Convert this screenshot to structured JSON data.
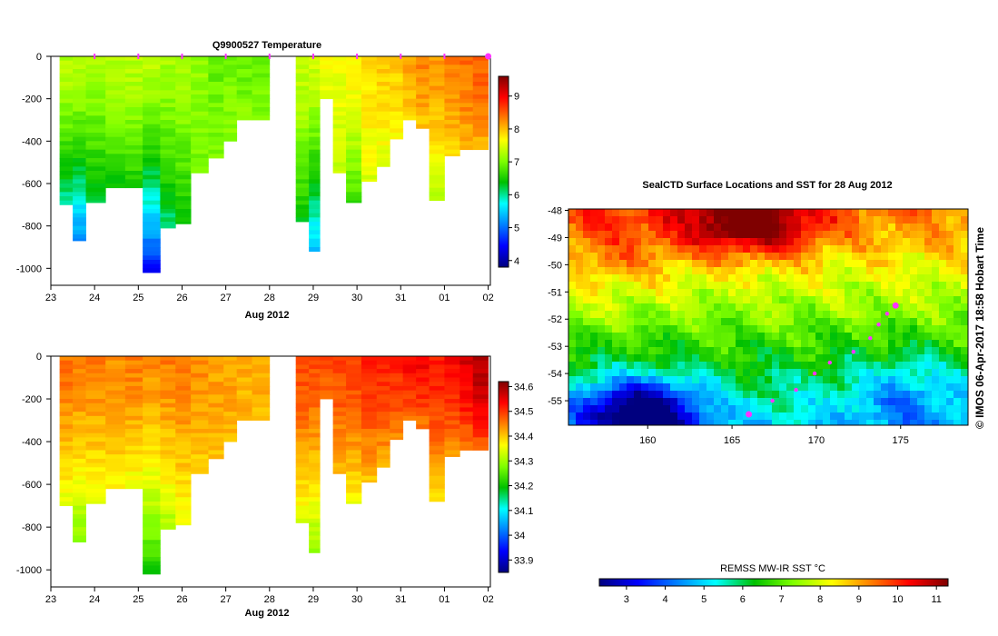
{
  "colors": {
    "jet": [
      "#00007f",
      "#0000ff",
      "#0080ff",
      "#00ffff",
      "#00c000",
      "#80ff00",
      "#ffff00",
      "#ff8000",
      "#ff0000",
      "#7f0000"
    ],
    "marker": "#ff33ff",
    "background": "#ffffff"
  },
  "chart_data": [
    {
      "type": "heatmap",
      "title": "Q9900527  Temperature",
      "xlabel": "Aug 2012",
      "x_ticks": [
        "23",
        "24",
        "25",
        "26",
        "27",
        "28",
        "29",
        "30",
        "31",
        "01",
        "02"
      ],
      "y_ticks": [
        "0",
        "-200",
        "-400",
        "-600",
        "-800",
        "-1000"
      ],
      "xlim": [
        23,
        33.05
      ],
      "ylim": [
        -1080,
        0
      ],
      "colorbar": {
        "min": 3.8,
        "max": 9.6,
        "ticks": [
          "4",
          "5",
          "6",
          "7",
          "8",
          "9"
        ]
      },
      "profile_markers": [
        24,
        25,
        26,
        27,
        28,
        29,
        30,
        31,
        32,
        33
      ],
      "profiles": [
        {
          "t": 23.4,
          "depth": 700,
          "surface": 7.3,
          "bottom": 5.9
        },
        {
          "t": 23.6,
          "depth": 870,
          "surface": 7.3,
          "bottom": 5.0
        },
        {
          "t": 24.0,
          "depth": 690,
          "surface": 7.2,
          "bottom": 6.1
        },
        {
          "t": 24.5,
          "depth": 620,
          "surface": 7.3,
          "bottom": 6.3
        },
        {
          "t": 24.9,
          "depth": 620,
          "surface": 7.3,
          "bottom": 6.4
        },
        {
          "t": 25.3,
          "depth": 1020,
          "surface": 7.3,
          "bottom": 4.4
        },
        {
          "t": 25.7,
          "depth": 810,
          "surface": 7.2,
          "bottom": 6.0
        },
        {
          "t": 26.0,
          "depth": 790,
          "surface": 7.2,
          "bottom": 6.3
        },
        {
          "t": 26.4,
          "depth": 550,
          "surface": 7.1,
          "bottom": 6.9
        },
        {
          "t": 26.8,
          "depth": 480,
          "surface": 6.9,
          "bottom": 7.0
        },
        {
          "t": 27.1,
          "depth": 400,
          "surface": 7.0,
          "bottom": 7.1
        },
        {
          "t": 27.4,
          "depth": 300,
          "surface": 6.9,
          "bottom": 7.1
        },
        {
          "t": 27.8,
          "depth": 300,
          "surface": 6.9,
          "bottom": 7.1
        },
        {
          "t": 28.8,
          "depth": 780,
          "surface": 7.4,
          "bottom": 6.3
        },
        {
          "t": 29.0,
          "depth": 920,
          "surface": 7.4,
          "bottom": 5.3
        },
        {
          "t": 29.3,
          "depth": 200,
          "surface": 7.6,
          "bottom": 7.5
        },
        {
          "t": 29.6,
          "depth": 550,
          "surface": 7.6,
          "bottom": 7.3
        },
        {
          "t": 29.9,
          "depth": 690,
          "surface": 7.7,
          "bottom": 6.6
        },
        {
          "t": 30.3,
          "depth": 590,
          "surface": 7.8,
          "bottom": 7.5
        },
        {
          "t": 30.6,
          "depth": 520,
          "surface": 7.9,
          "bottom": 7.5
        },
        {
          "t": 30.9,
          "depth": 390,
          "surface": 7.9,
          "bottom": 7.7
        },
        {
          "t": 31.2,
          "depth": 300,
          "surface": 8.1,
          "bottom": 7.9
        },
        {
          "t": 31.5,
          "depth": 340,
          "surface": 8.3,
          "bottom": 7.9
        },
        {
          "t": 31.8,
          "depth": 680,
          "surface": 8.2,
          "bottom": 7.2
        },
        {
          "t": 32.2,
          "depth": 470,
          "surface": 8.3,
          "bottom": 7.8
        },
        {
          "t": 32.5,
          "depth": 440,
          "surface": 8.4,
          "bottom": 8.0
        },
        {
          "t": 32.8,
          "depth": 440,
          "surface": 8.5,
          "bottom": 8.0
        }
      ]
    },
    {
      "type": "heatmap",
      "title": "",
      "xlabel": "Aug 2012",
      "x_ticks": [
        "23",
        "24",
        "25",
        "26",
        "27",
        "28",
        "29",
        "30",
        "31",
        "01",
        "02"
      ],
      "y_ticks": [
        "0",
        "-200",
        "-400",
        "-600",
        "-800",
        "-1000"
      ],
      "xlim": [
        23,
        33.05
      ],
      "ylim": [
        -1080,
        0
      ],
      "colorbar": {
        "min": 33.85,
        "max": 34.62,
        "ticks": [
          "33.9",
          "34",
          "34.1",
          "34.2",
          "34.3",
          "34.4",
          "34.5",
          "34.6"
        ]
      },
      "profiles": [
        {
          "t": 23.4,
          "depth": 700,
          "surface": 34.46,
          "bottom": 34.34
        },
        {
          "t": 23.6,
          "depth": 870,
          "surface": 34.45,
          "bottom": 34.27
        },
        {
          "t": 24.0,
          "depth": 690,
          "surface": 34.45,
          "bottom": 34.33
        },
        {
          "t": 24.5,
          "depth": 620,
          "surface": 34.44,
          "bottom": 34.36
        },
        {
          "t": 24.9,
          "depth": 620,
          "surface": 34.45,
          "bottom": 34.34
        },
        {
          "t": 25.3,
          "depth": 1020,
          "surface": 34.44,
          "bottom": 34.2
        },
        {
          "t": 25.7,
          "depth": 810,
          "surface": 34.45,
          "bottom": 34.3
        },
        {
          "t": 26.0,
          "depth": 790,
          "surface": 34.45,
          "bottom": 34.34
        },
        {
          "t": 26.4,
          "depth": 550,
          "surface": 34.44,
          "bottom": 34.38
        },
        {
          "t": 26.8,
          "depth": 480,
          "surface": 34.43,
          "bottom": 34.4
        },
        {
          "t": 27.1,
          "depth": 400,
          "surface": 34.43,
          "bottom": 34.41
        },
        {
          "t": 27.4,
          "depth": 300,
          "surface": 34.42,
          "bottom": 34.41
        },
        {
          "t": 27.8,
          "depth": 300,
          "surface": 34.42,
          "bottom": 34.41
        },
        {
          "t": 28.8,
          "depth": 780,
          "surface": 34.49,
          "bottom": 34.33
        },
        {
          "t": 29.0,
          "depth": 920,
          "surface": 34.48,
          "bottom": 34.28
        },
        {
          "t": 29.3,
          "depth": 200,
          "surface": 34.48,
          "bottom": 34.46
        },
        {
          "t": 29.6,
          "depth": 550,
          "surface": 34.49,
          "bottom": 34.4
        },
        {
          "t": 29.9,
          "depth": 690,
          "surface": 34.49,
          "bottom": 34.35
        },
        {
          "t": 30.3,
          "depth": 590,
          "surface": 34.51,
          "bottom": 34.4
        },
        {
          "t": 30.6,
          "depth": 520,
          "surface": 34.51,
          "bottom": 34.41
        },
        {
          "t": 30.9,
          "depth": 390,
          "surface": 34.51,
          "bottom": 34.44
        },
        {
          "t": 31.2,
          "depth": 300,
          "surface": 34.53,
          "bottom": 34.46
        },
        {
          "t": 31.5,
          "depth": 340,
          "surface": 34.54,
          "bottom": 34.44
        },
        {
          "t": 31.8,
          "depth": 680,
          "surface": 34.52,
          "bottom": 34.37
        },
        {
          "t": 32.2,
          "depth": 470,
          "surface": 34.53,
          "bottom": 34.42
        },
        {
          "t": 32.5,
          "depth": 440,
          "surface": 34.56,
          "bottom": 34.44
        },
        {
          "t": 32.8,
          "depth": 440,
          "surface": 34.59,
          "bottom": 34.46
        }
      ]
    },
    {
      "type": "heatmap",
      "title": "SealCTD Surface Locations and SST for 28 Aug 2012",
      "x_ticks": [
        160,
        165,
        170,
        175
      ],
      "y_ticks": [
        -48,
        -49,
        -50,
        -51,
        -52,
        -53,
        -54,
        -55
      ],
      "xlim": [
        155.3,
        179
      ],
      "ylim": [
        -55.9,
        -47.95
      ],
      "colorbar": {
        "label": "REMSS MW-IR SST °C",
        "min": 2.3,
        "max": 11.3,
        "ticks": [
          3,
          4,
          5,
          6,
          7,
          8,
          9,
          10,
          11
        ]
      },
      "track": [
        {
          "lon": 174.7,
          "lat": -51.5
        },
        {
          "lon": 174.2,
          "lat": -51.8
        },
        {
          "lon": 173.7,
          "lat": -52.2
        },
        {
          "lon": 173.2,
          "lat": -52.7
        },
        {
          "lon": 172.2,
          "lat": -53.2
        },
        {
          "lon": 170.8,
          "lat": -53.6
        },
        {
          "lon": 169.9,
          "lat": -54.0
        },
        {
          "lon": 168.8,
          "lat": -54.6
        },
        {
          "lon": 167.4,
          "lat": -55.0
        },
        {
          "lon": 166.0,
          "lat": -55.5
        }
      ]
    }
  ],
  "credit": "© IMOS 06-Apr-2017 18:58 Hobart Time"
}
